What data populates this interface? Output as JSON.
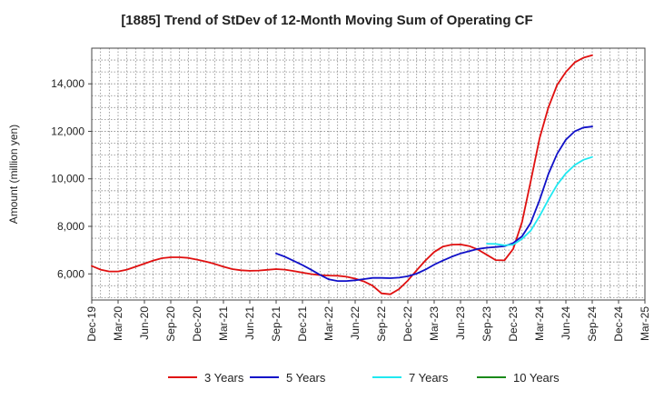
{
  "chart_data": {
    "type": "line",
    "title": "[1885]  Trend of StDev of 12-Month Moving Sum of Operating CF",
    "xlabel": "",
    "ylabel": "Amount (million yen)",
    "ylim": [
      4900,
      15500
    ],
    "yticks": [
      6000,
      8000,
      10000,
      12000,
      14000
    ],
    "ytick_labels": [
      "6,000",
      "8,000",
      "10,000",
      "12,000",
      "14,000"
    ],
    "x_tick_labels": [
      "Dec-19",
      "Mar-20",
      "Jun-20",
      "Sep-20",
      "Dec-20",
      "Mar-21",
      "Jun-21",
      "Sep-21",
      "Dec-21",
      "Mar-22",
      "Jun-22",
      "Sep-22",
      "Dec-22",
      "Mar-23",
      "Jun-23",
      "Sep-23",
      "Dec-23",
      "Mar-24",
      "Jun-24",
      "Sep-24",
      "Dec-24",
      "Mar-25"
    ],
    "x_range": [
      "Dec-19",
      "Mar-25"
    ],
    "grid": true,
    "legend_position": "bottom",
    "series": [
      {
        "name": "3 Years",
        "color": "#e01010",
        "x": [
          "Dec-19",
          "Jan-20",
          "Feb-20",
          "Mar-20",
          "Apr-20",
          "May-20",
          "Jun-20",
          "Jul-20",
          "Aug-20",
          "Sep-20",
          "Oct-20",
          "Nov-20",
          "Dec-20",
          "Jan-21",
          "Feb-21",
          "Mar-21",
          "Apr-21",
          "May-21",
          "Jun-21",
          "Jul-21",
          "Aug-21",
          "Sep-21",
          "Oct-21",
          "Nov-21",
          "Dec-21",
          "Jan-22",
          "Feb-22",
          "Mar-22",
          "Apr-22",
          "May-22",
          "Jun-22",
          "Jul-22",
          "Aug-22",
          "Sep-22",
          "Oct-22",
          "Nov-22",
          "Dec-22",
          "Jan-23",
          "Feb-23",
          "Mar-23",
          "Apr-23",
          "May-23",
          "Jun-23",
          "Jul-23",
          "Aug-23",
          "Sep-23",
          "Oct-23",
          "Nov-23",
          "Dec-23",
          "Jan-24",
          "Feb-24",
          "Mar-24",
          "Apr-24",
          "May-24",
          "Jun-24",
          "Jul-24",
          "Aug-24",
          "Sep-24"
        ],
        "values": [
          6330,
          6180,
          6100,
          6100,
          6180,
          6300,
          6430,
          6560,
          6660,
          6700,
          6700,
          6670,
          6600,
          6520,
          6420,
          6300,
          6200,
          6150,
          6130,
          6140,
          6170,
          6200,
          6180,
          6120,
          6050,
          5990,
          5950,
          5930,
          5920,
          5880,
          5800,
          5680,
          5500,
          5180,
          5140,
          5360,
          5720,
          6150,
          6560,
          6920,
          7150,
          7230,
          7240,
          7170,
          7020,
          6800,
          6580,
          6570,
          7050,
          8180,
          9900,
          11700,
          13000,
          13950,
          14500,
          14900,
          15100,
          15200
        ]
      },
      {
        "name": "5 Years",
        "color": "#1010c8",
        "x": [
          "Sep-21",
          "Oct-21",
          "Nov-21",
          "Dec-21",
          "Jan-22",
          "Feb-22",
          "Mar-22",
          "Apr-22",
          "May-22",
          "Jun-22",
          "Jul-22",
          "Aug-22",
          "Sep-22",
          "Oct-22",
          "Nov-22",
          "Dec-22",
          "Jan-23",
          "Feb-23",
          "Mar-23",
          "Apr-23",
          "May-23",
          "Jun-23",
          "Jul-23",
          "Aug-23",
          "Sep-23",
          "Oct-23",
          "Nov-23",
          "Dec-23",
          "Jan-24",
          "Feb-24",
          "Mar-24",
          "Apr-24",
          "May-24",
          "Jun-24",
          "Jul-24",
          "Aug-24",
          "Sep-24"
        ],
        "values": [
          6860,
          6720,
          6550,
          6370,
          6170,
          5960,
          5770,
          5700,
          5700,
          5730,
          5780,
          5830,
          5830,
          5820,
          5840,
          5900,
          6010,
          6180,
          6390,
          6560,
          6720,
          6860,
          6960,
          7050,
          7100,
          7130,
          7160,
          7300,
          7580,
          8150,
          9100,
          10200,
          11050,
          11650,
          12000,
          12160,
          12200
        ]
      },
      {
        "name": "7 Years",
        "color": "#20e8f0",
        "x": [
          "Sep-23",
          "Oct-23",
          "Nov-23",
          "Dec-23",
          "Jan-24",
          "Feb-24",
          "Mar-24",
          "Apr-24",
          "May-24",
          "Jun-24",
          "Jul-24",
          "Aug-24",
          "Sep-24"
        ],
        "values": [
          7270,
          7260,
          7200,
          7230,
          7470,
          7820,
          8430,
          9120,
          9750,
          10230,
          10580,
          10800,
          10920
        ]
      },
      {
        "name": "10 Years",
        "color": "#1a8a1a",
        "x": [],
        "values": []
      }
    ]
  }
}
